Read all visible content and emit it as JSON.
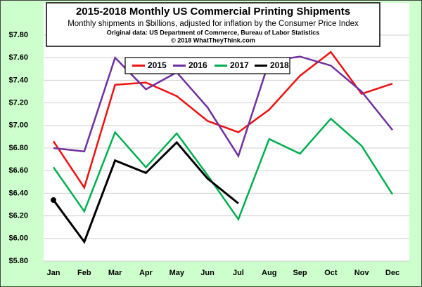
{
  "chart_data": {
    "type": "line",
    "title": "2015-2018 Monthly US Commercial Printing Shipments",
    "subtitle": "Monthly shipments in $billions, adjusted for inflation by the Consumer Price Index",
    "source": "Original data: US Department of Commerce, Bureau of Labor Statistics",
    "copyright": "© 2018 WhatTheyThink.com",
    "categories": [
      "Jan",
      "Feb",
      "Mar",
      "Apr",
      "May",
      "Jun",
      "Jul",
      "Aug",
      "Sep",
      "Oct",
      "Nov",
      "Dec"
    ],
    "series": [
      {
        "name": "2015",
        "color": "#ee1111",
        "values": [
          6.86,
          6.45,
          7.36,
          7.38,
          7.26,
          7.04,
          6.94,
          7.14,
          7.44,
          7.65,
          7.28,
          7.37
        ]
      },
      {
        "name": "2016",
        "color": "#7030a0",
        "values": [
          6.8,
          6.77,
          7.6,
          7.32,
          7.47,
          7.16,
          6.73,
          7.57,
          7.61,
          7.53,
          7.3,
          6.96
        ]
      },
      {
        "name": "2017",
        "color": "#00b050",
        "values": [
          6.63,
          6.24,
          6.94,
          6.63,
          6.93,
          6.56,
          6.17,
          6.88,
          6.75,
          7.06,
          6.82,
          6.39
        ]
      },
      {
        "name": "2018",
        "color": "#000000",
        "values": [
          6.34,
          5.97,
          6.69,
          6.58,
          6.85,
          6.53,
          6.31,
          null,
          null,
          null,
          null,
          null
        ]
      }
    ],
    "ylim": [
      5.8,
      7.8
    ],
    "yticks": [
      {
        "value": 5.8,
        "label": "$5.80"
      },
      {
        "value": 6.0,
        "label": "$6.00"
      },
      {
        "value": 6.2,
        "label": "$6.20"
      },
      {
        "value": 6.4,
        "label": "$6.40"
      },
      {
        "value": 6.6,
        "label": "$6.60"
      },
      {
        "value": 6.8,
        "label": "$6.80"
      },
      {
        "value": 7.0,
        "label": "$7.00"
      },
      {
        "value": 7.2,
        "label": "$7.20"
      },
      {
        "value": 7.4,
        "label": "$7.40"
      },
      {
        "value": 7.6,
        "label": "$7.60"
      },
      {
        "value": 7.8,
        "label": "$7.80"
      }
    ],
    "grid": true,
    "legend": "top"
  }
}
